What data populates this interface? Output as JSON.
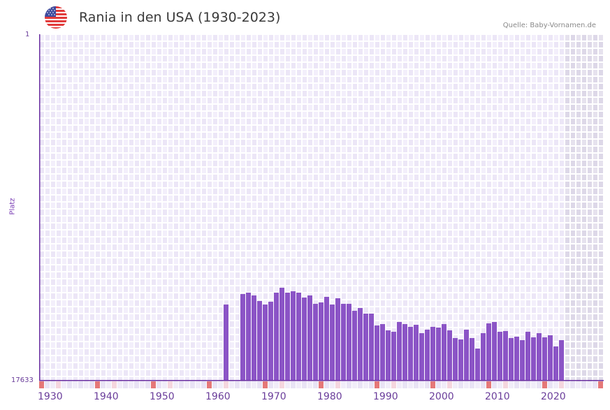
{
  "header": {
    "title": "Rania in den USA (1930-2023)",
    "source": "Quelle: Baby-Vornamen.de",
    "flag_icon": "us-flag-icon"
  },
  "axes": {
    "y_top_label": "1",
    "y_bottom_label": "17633",
    "y_title": "Platz",
    "x_tick_labels": [
      "1930",
      "1940",
      "1950",
      "1960",
      "1970",
      "1980",
      "1990",
      "2000",
      "2010",
      "2020"
    ]
  },
  "colors": {
    "bar": "#8b54c6",
    "axis": "#6a2fa0",
    "grid_bg_a": "#f3effb",
    "grid_bg_b": "#ece6f7",
    "future_bg_a": "#e6e2ee",
    "future_bg_b": "#ddd8e8",
    "decade_marker": "#e57878",
    "midecade_marker": "#f5d6de",
    "label": "#6a3d9a"
  },
  "chart_data": {
    "type": "bar",
    "title": "Rania in den USA (1930-2023)",
    "xlabel": "",
    "ylabel": "Platz",
    "y_inverted": true,
    "ylim": [
      17633,
      1
    ],
    "xlim": [
      1930,
      2030
    ],
    "grid": true,
    "legend": null,
    "annotations": [
      "Quelle: Baby-Vornamen.de"
    ],
    "x": [
      1963,
      1966,
      1967,
      1968,
      1969,
      1970,
      1971,
      1972,
      1973,
      1974,
      1975,
      1976,
      1977,
      1978,
      1979,
      1980,
      1981,
      1982,
      1983,
      1984,
      1985,
      1986,
      1987,
      1988,
      1989,
      1990,
      1991,
      1992,
      1993,
      1994,
      1995,
      1996,
      1997,
      1998,
      1999,
      2000,
      2001,
      2002,
      2003,
      2004,
      2005,
      2006,
      2007,
      2008,
      2009,
      2010,
      2011,
      2012,
      2013,
      2014,
      2015,
      2016,
      2017,
      2018,
      2019,
      2020,
      2021,
      2022,
      2023
    ],
    "values": [
      13758,
      13225,
      13154,
      13296,
      13580,
      13758,
      13616,
      13154,
      12905,
      13154,
      13083,
      13154,
      13403,
      13296,
      13722,
      13651,
      13367,
      13758,
      13438,
      13722,
      13722,
      14077,
      13935,
      14220,
      14220,
      14824,
      14753,
      15073,
      15144,
      14646,
      14753,
      14895,
      14789,
      15215,
      15037,
      14895,
      14931,
      14753,
      15073,
      15464,
      15535,
      15037,
      15464,
      15997,
      15215,
      14717,
      14646,
      15144,
      15108,
      15464,
      15393,
      15571,
      15144,
      15428,
      15215,
      15428,
      15322,
      15890,
      15571
    ]
  }
}
